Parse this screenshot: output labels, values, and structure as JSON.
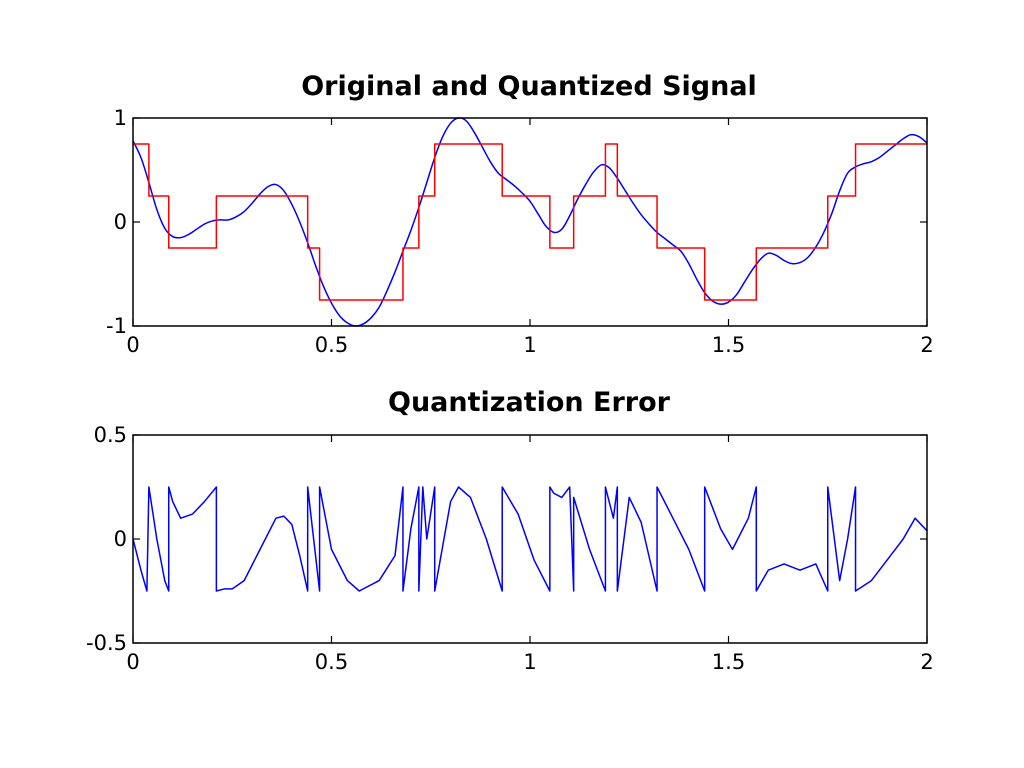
{
  "figure": {
    "background": "#ffffff"
  },
  "chart_data": [
    {
      "type": "line",
      "title": "Original and Quantized Signal",
      "xlabel": "",
      "ylabel": "",
      "xlim": [
        0,
        2
      ],
      "ylim": [
        -1,
        1
      ],
      "xticks": [
        0,
        0.5,
        1,
        1.5,
        2
      ],
      "xtick_labels": [
        "0",
        "0.5",
        "1",
        "1.5",
        "2"
      ],
      "yticks": [
        -1,
        0,
        1
      ],
      "ytick_labels": [
        "-1",
        "0",
        "1"
      ],
      "grid": false,
      "legend": "none",
      "series": [
        {
          "color": "#0000ff",
          "style": "smooth",
          "x": [
            0,
            0.02,
            0.04,
            0.06,
            0.08,
            0.1,
            0.12,
            0.14,
            0.16,
            0.18,
            0.2,
            0.22,
            0.24,
            0.26,
            0.28,
            0.3,
            0.32,
            0.34,
            0.36,
            0.38,
            0.4,
            0.42,
            0.44,
            0.46,
            0.48,
            0.5,
            0.52,
            0.54,
            0.56,
            0.58,
            0.6,
            0.62,
            0.64,
            0.66,
            0.68,
            0.7,
            0.72,
            0.74,
            0.76,
            0.78,
            0.8,
            0.82,
            0.84,
            0.86,
            0.88,
            0.9,
            0.92,
            0.94,
            0.96,
            0.98,
            1.0,
            1.02,
            1.04,
            1.06,
            1.08,
            1.1,
            1.12,
            1.14,
            1.16,
            1.18,
            1.2,
            1.22,
            1.24,
            1.26,
            1.28,
            1.3,
            1.32,
            1.34,
            1.36,
            1.38,
            1.4,
            1.42,
            1.44,
            1.46,
            1.48,
            1.5,
            1.52,
            1.54,
            1.56,
            1.58,
            1.6,
            1.62,
            1.64,
            1.66,
            1.68,
            1.7,
            1.72,
            1.74,
            1.76,
            1.78,
            1.8,
            1.82,
            1.84,
            1.86,
            1.88,
            1.9,
            1.92,
            1.94,
            1.96,
            1.98,
            2.0
          ],
          "y": [
            0.78,
            0.62,
            0.38,
            0.12,
            -0.06,
            -0.14,
            -0.15,
            -0.12,
            -0.07,
            -0.02,
            0.01,
            0.02,
            0.02,
            0.05,
            0.1,
            0.18,
            0.27,
            0.34,
            0.36,
            0.3,
            0.17,
            0.0,
            -0.2,
            -0.42,
            -0.62,
            -0.78,
            -0.9,
            -0.97,
            -1.0,
            -0.98,
            -0.92,
            -0.82,
            -0.66,
            -0.48,
            -0.28,
            -0.08,
            0.14,
            0.38,
            0.62,
            0.82,
            0.95,
            1.0,
            0.97,
            0.86,
            0.72,
            0.58,
            0.47,
            0.41,
            0.35,
            0.28,
            0.2,
            0.08,
            -0.04,
            -0.1,
            -0.07,
            0.06,
            0.22,
            0.36,
            0.48,
            0.55,
            0.52,
            0.42,
            0.3,
            0.18,
            0.07,
            -0.02,
            -0.1,
            -0.16,
            -0.22,
            -0.28,
            -0.4,
            -0.55,
            -0.68,
            -0.76,
            -0.79,
            -0.77,
            -0.7,
            -0.58,
            -0.46,
            -0.36,
            -0.3,
            -0.32,
            -0.37,
            -0.4,
            -0.39,
            -0.34,
            -0.24,
            -0.1,
            0.08,
            0.3,
            0.47,
            0.53,
            0.56,
            0.58,
            0.62,
            0.68,
            0.74,
            0.8,
            0.84,
            0.82,
            0.76
          ]
        },
        {
          "color": "#ff0000",
          "style": "step",
          "x": [
            0,
            0.04,
            0.04,
            0.09,
            0.09,
            0.21,
            0.21,
            0.44,
            0.44,
            0.47,
            0.47,
            0.68,
            0.68,
            0.72,
            0.72,
            0.76,
            0.76,
            0.93,
            0.93,
            1.05,
            1.05,
            1.11,
            1.11,
            1.19,
            1.19,
            1.22,
            1.22,
            1.32,
            1.32,
            1.44,
            1.44,
            1.57,
            1.57,
            1.75,
            1.75,
            1.82,
            1.82,
            2.0
          ],
          "y": [
            0.75,
            0.75,
            0.25,
            0.25,
            -0.25,
            -0.25,
            0.25,
            0.25,
            -0.25,
            -0.25,
            -0.75,
            -0.75,
            -0.25,
            -0.25,
            0.25,
            0.25,
            0.75,
            0.75,
            0.25,
            0.25,
            -0.25,
            -0.25,
            0.25,
            0.25,
            0.75,
            0.75,
            0.25,
            0.25,
            -0.25,
            -0.25,
            -0.75,
            -0.75,
            -0.25,
            -0.25,
            0.25,
            0.25,
            0.75,
            0.75
          ]
        }
      ]
    },
    {
      "type": "line",
      "title": "Quantization Error",
      "xlabel": "",
      "ylabel": "",
      "xlim": [
        0,
        2
      ],
      "ylim": [
        -0.5,
        0.5
      ],
      "xticks": [
        0,
        0.5,
        1,
        1.5,
        2
      ],
      "xtick_labels": [
        "0",
        "0.5",
        "1",
        "1.5",
        "2"
      ],
      "yticks": [
        -0.5,
        0,
        0.5
      ],
      "ytick_labels": [
        "-0.5",
        "0",
        "0.5"
      ],
      "grid": false,
      "legend": "none",
      "series": [
        {
          "color": "#0000ff",
          "style": "linear",
          "x": [
            0,
            0.02,
            0.035,
            0.04,
            0.04,
            0.06,
            0.08,
            0.09,
            0.09,
            0.1,
            0.12,
            0.15,
            0.18,
            0.21,
            0.21,
            0.23,
            0.25,
            0.28,
            0.32,
            0.36,
            0.38,
            0.4,
            0.42,
            0.44,
            0.44,
            0.47,
            0.47,
            0.5,
            0.54,
            0.57,
            0.62,
            0.66,
            0.68,
            0.68,
            0.7,
            0.72,
            0.72,
            0.73,
            0.74,
            0.76,
            0.76,
            0.8,
            0.82,
            0.85,
            0.89,
            0.93,
            0.93,
            0.97,
            1.01,
            1.05,
            1.05,
            1.06,
            1.08,
            1.1,
            1.11,
            1.11,
            1.15,
            1.19,
            1.19,
            1.21,
            1.22,
            1.22,
            1.25,
            1.28,
            1.32,
            1.32,
            1.36,
            1.4,
            1.44,
            1.44,
            1.48,
            1.51,
            1.55,
            1.57,
            1.57,
            1.6,
            1.64,
            1.68,
            1.72,
            1.75,
            1.75,
            1.78,
            1.8,
            1.82,
            1.82,
            1.86,
            1.9,
            1.94,
            1.97,
            2.0
          ],
          "y": [
            0.0,
            -0.15,
            -0.25,
            0.25,
            0.25,
            0.0,
            -0.2,
            -0.25,
            0.25,
            0.18,
            0.1,
            0.12,
            0.18,
            0.25,
            -0.25,
            -0.24,
            -0.24,
            -0.2,
            -0.05,
            0.1,
            0.11,
            0.07,
            -0.08,
            -0.25,
            0.25,
            -0.25,
            0.25,
            -0.05,
            -0.2,
            -0.25,
            -0.2,
            -0.08,
            0.25,
            -0.25,
            0.05,
            0.25,
            -0.25,
            0.25,
            0.0,
            0.25,
            -0.25,
            0.18,
            0.25,
            0.2,
            0.0,
            -0.25,
            0.25,
            0.12,
            -0.1,
            -0.25,
            0.25,
            0.22,
            0.2,
            0.25,
            -0.25,
            0.2,
            -0.05,
            -0.25,
            0.25,
            0.1,
            0.25,
            -0.25,
            0.2,
            0.08,
            -0.25,
            0.25,
            0.1,
            -0.05,
            -0.25,
            0.25,
            0.05,
            -0.05,
            0.1,
            0.25,
            -0.25,
            -0.15,
            -0.12,
            -0.15,
            -0.12,
            -0.25,
            0.25,
            -0.2,
            0.0,
            0.25,
            -0.25,
            -0.2,
            -0.1,
            0.0,
            0.1,
            0.04
          ]
        }
      ]
    }
  ]
}
